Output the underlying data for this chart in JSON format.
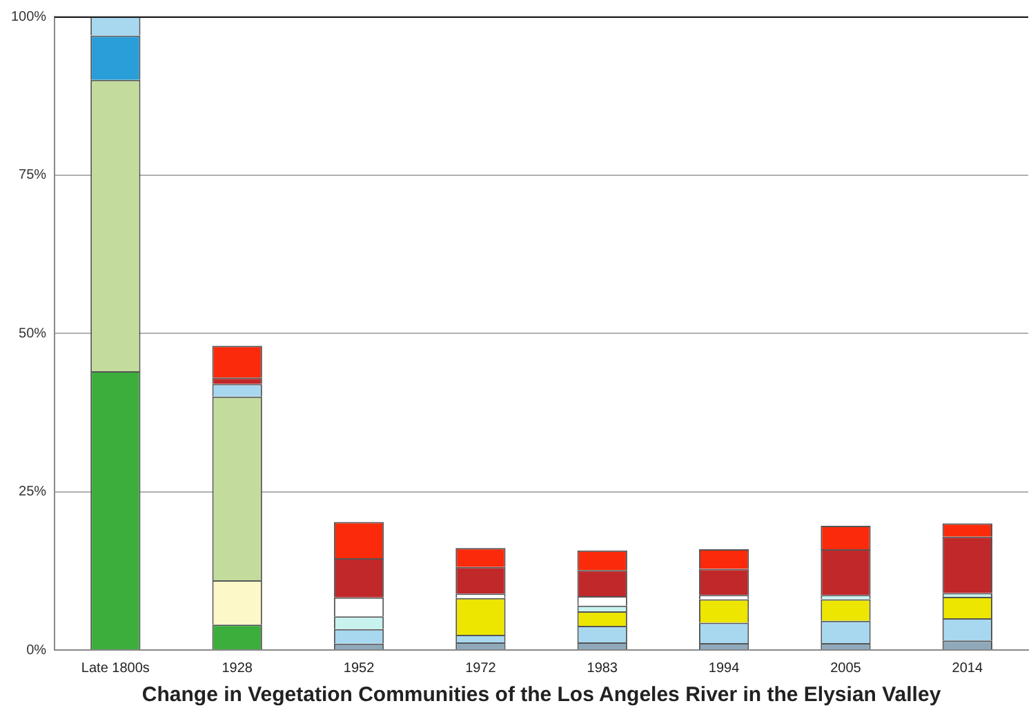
{
  "chart_data": {
    "type": "bar",
    "stacked": true,
    "xlabel": "Change in Vegetation Communities of the Los Angeles River in the Elysian Valley",
    "categories": [
      "Late 1800s",
      "1928",
      "1952",
      "1972",
      "1983",
      "1994",
      "2005",
      "2014"
    ],
    "series": [
      {
        "color": "#3cae3c",
        "values": [
          44,
          4,
          null,
          null,
          null,
          null,
          null,
          null
        ]
      },
      {
        "color": "#fdf8c8",
        "values": [
          null,
          7,
          null,
          null,
          null,
          null,
          null,
          null
        ]
      },
      {
        "color": "#c3dc9e",
        "values": [
          46,
          29,
          null,
          null,
          null,
          null,
          null,
          null
        ]
      },
      {
        "color": "#2a9ed8",
        "values": [
          7,
          null,
          null,
          null,
          null,
          null,
          null,
          null
        ]
      },
      {
        "color": "#8fa9bb",
        "values": [
          null,
          null,
          1,
          1.2,
          1.2,
          1.1,
          1.1,
          1.5
        ]
      },
      {
        "color": "#a8d8f0",
        "values": [
          3,
          2,
          2.3,
          1.2,
          2.6,
          3.2,
          3.5,
          3.5
        ]
      },
      {
        "color": "#ece600",
        "values": [
          null,
          null,
          null,
          5.8,
          2.3,
          3.7,
          3.4,
          3.4
        ]
      },
      {
        "color": "#c8f2ee",
        "values": [
          null,
          null,
          2,
          null,
          0.9,
          null,
          0.7,
          0.6
        ]
      },
      {
        "color": "#ffffff",
        "values": [
          null,
          null,
          3,
          0.7,
          1.5,
          0.7,
          null,
          null
        ]
      },
      {
        "color": "#c0282a",
        "values": [
          null,
          1,
          6.2,
          4.2,
          4.1,
          4.1,
          7.2,
          8.9
        ]
      },
      {
        "color": "#fa2a0a",
        "values": [
          null,
          5,
          5.7,
          3,
          3.1,
          3.1,
          3.7,
          2.1
        ]
      }
    ],
    "ylim": [
      0,
      100
    ],
    "yticks": [
      {
        "value": 0,
        "label": "0%"
      },
      {
        "value": 25,
        "label": "25%"
      },
      {
        "value": 50,
        "label": "50%"
      },
      {
        "value": 75,
        "label": "75%"
      },
      {
        "value": 100,
        "label": "100%"
      }
    ],
    "grid": "y"
  }
}
